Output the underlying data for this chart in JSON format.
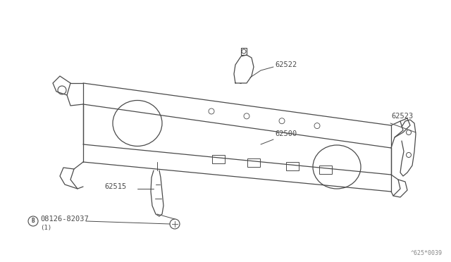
{
  "bg_color": "#ffffff",
  "line_color": "#4a4a4a",
  "label_color": "#4a4a4a",
  "fig_width": 6.4,
  "fig_height": 3.72,
  "dpi": 100,
  "font_size": 7.5,
  "small_font_size": 6.5,
  "watermark": "^625*0039"
}
